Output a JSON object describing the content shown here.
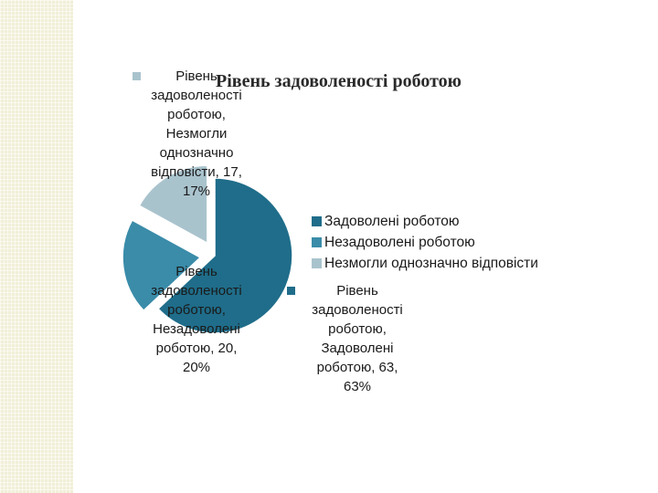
{
  "chart_data": {
    "type": "pie",
    "title": "Рівень задоволеності роботою",
    "slices": [
      {
        "name": "Задоволені роботою",
        "value": 63,
        "percent": "63%",
        "color": "#1f6d8a",
        "data_label": [
          "Рівень",
          "задоволеності",
          "роботою,",
          "Задоволені",
          "роботою, 63,",
          "63%"
        ]
      },
      {
        "name": "Незадоволені роботою",
        "value": 20,
        "percent": "20%",
        "color": "#3a8ca9",
        "data_label": [
          "Рівень",
          "задоволеності",
          "роботою,",
          "Незадоволені",
          "роботою, 20,",
          "20%"
        ]
      },
      {
        "name": "Незмогли однозначно відповісти",
        "value": 17,
        "percent": "17%",
        "color": "#a9c3cd",
        "data_label": [
          "Рівень",
          "задоволеності",
          "роботою,",
          "Незмогли",
          "однозначно",
          "відповісти, 17,",
          "17%"
        ]
      }
    ],
    "legend_position": "right",
    "exploded": true
  }
}
